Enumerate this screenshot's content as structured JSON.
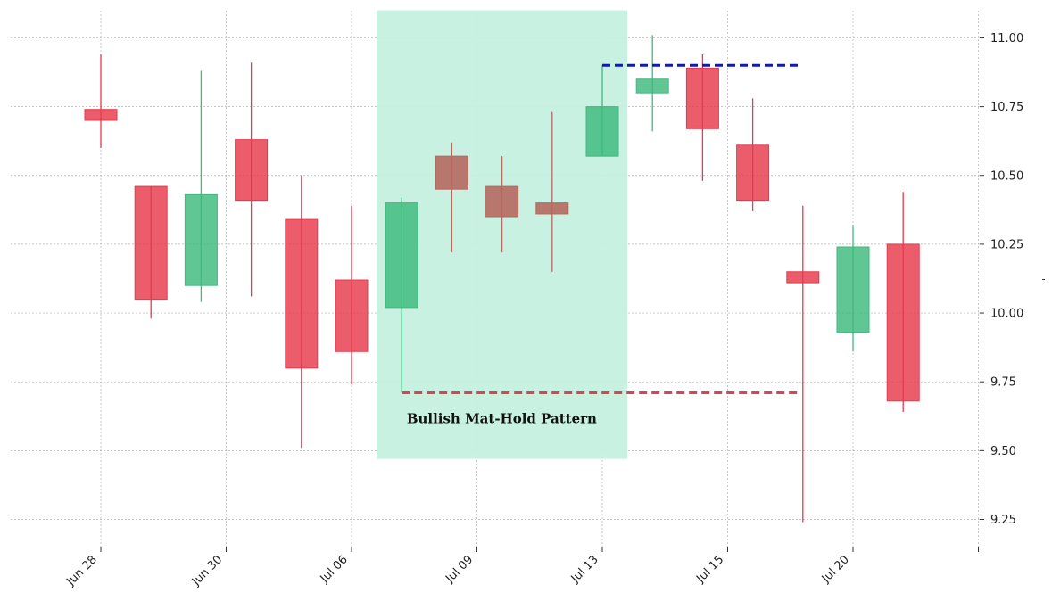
{
  "chart_data": {
    "type": "candlestick",
    "ylim": [
      9.15,
      11.1
    ],
    "yticks": [
      "9.25",
      "9.50",
      "9.75",
      "10.00",
      "10.25",
      "10.50",
      "10.75",
      "11.00"
    ],
    "xticks": [
      "Jun 28",
      "Jun 30",
      "Jul 06",
      "Jul 09",
      "Jul 13",
      "Jul 15",
      "Jul 20",
      ""
    ],
    "grid": true,
    "colors": {
      "bull": "#3dba7d",
      "bear": "#e8394c",
      "pattern_bear": "#b5695f",
      "highlight": "#c6f0e0",
      "resistance": "#0d1ab8",
      "support": "#d64553"
    },
    "candles": [
      {
        "open": 10.74,
        "high": 10.94,
        "low": 10.6,
        "close": 10.7,
        "dir": "down",
        "in_pattern": false
      },
      {
        "open": 10.46,
        "high": 10.46,
        "low": 9.98,
        "close": 10.05,
        "dir": "down",
        "in_pattern": false
      },
      {
        "open": 10.1,
        "high": 10.88,
        "low": 10.04,
        "close": 10.43,
        "dir": "up",
        "in_pattern": false
      },
      {
        "open": 10.63,
        "high": 10.91,
        "low": 10.06,
        "close": 10.41,
        "dir": "down",
        "in_pattern": false
      },
      {
        "open": 10.34,
        "high": 10.5,
        "low": 9.51,
        "close": 9.8,
        "dir": "down",
        "in_pattern": false
      },
      {
        "open": 10.12,
        "high": 10.39,
        "low": 9.74,
        "close": 9.86,
        "dir": "down",
        "in_pattern": false
      },
      {
        "open": 10.02,
        "high": 10.42,
        "low": 9.71,
        "close": 10.4,
        "dir": "up",
        "in_pattern": true
      },
      {
        "open": 10.57,
        "high": 10.62,
        "low": 10.22,
        "close": 10.45,
        "dir": "down",
        "in_pattern": true
      },
      {
        "open": 10.46,
        "high": 10.57,
        "low": 10.22,
        "close": 10.35,
        "dir": "down",
        "in_pattern": true
      },
      {
        "open": 10.4,
        "high": 10.73,
        "low": 10.15,
        "close": 10.36,
        "dir": "down",
        "in_pattern": true
      },
      {
        "open": 10.57,
        "high": 10.9,
        "low": 10.57,
        "close": 10.75,
        "dir": "up",
        "in_pattern": false
      },
      {
        "open": 10.8,
        "high": 11.01,
        "low": 10.66,
        "close": 10.85,
        "dir": "up",
        "in_pattern": false
      },
      {
        "open": 10.89,
        "high": 10.94,
        "low": 10.48,
        "close": 10.67,
        "dir": "down",
        "in_pattern": false
      },
      {
        "open": 10.61,
        "high": 10.78,
        "low": 10.37,
        "close": 10.41,
        "dir": "down",
        "in_pattern": false
      },
      {
        "open": 10.15,
        "high": 10.39,
        "low": 9.24,
        "close": 10.11,
        "dir": "down",
        "in_pattern": false
      },
      {
        "open": 9.93,
        "high": 10.32,
        "low": 9.86,
        "close": 10.24,
        "dir": "up",
        "in_pattern": false
      },
      {
        "open": 10.25,
        "high": 10.44,
        "low": 9.64,
        "close": 9.68,
        "dir": "down",
        "in_pattern": false
      }
    ],
    "highlight_zone": {
      "x_from": 5.5,
      "x_to": 10.5,
      "y_from": 9.47,
      "y_to": 11.1
    },
    "resistance_line": {
      "y": 10.9,
      "x_from": 10.0,
      "x_to": 13.9
    },
    "support_line": {
      "y": 9.71,
      "x_from": 6.0,
      "x_to": 13.9
    },
    "annotation": {
      "text": "Bullish Mat-Hold Pattern",
      "x": 6.1,
      "y": 9.6
    }
  }
}
